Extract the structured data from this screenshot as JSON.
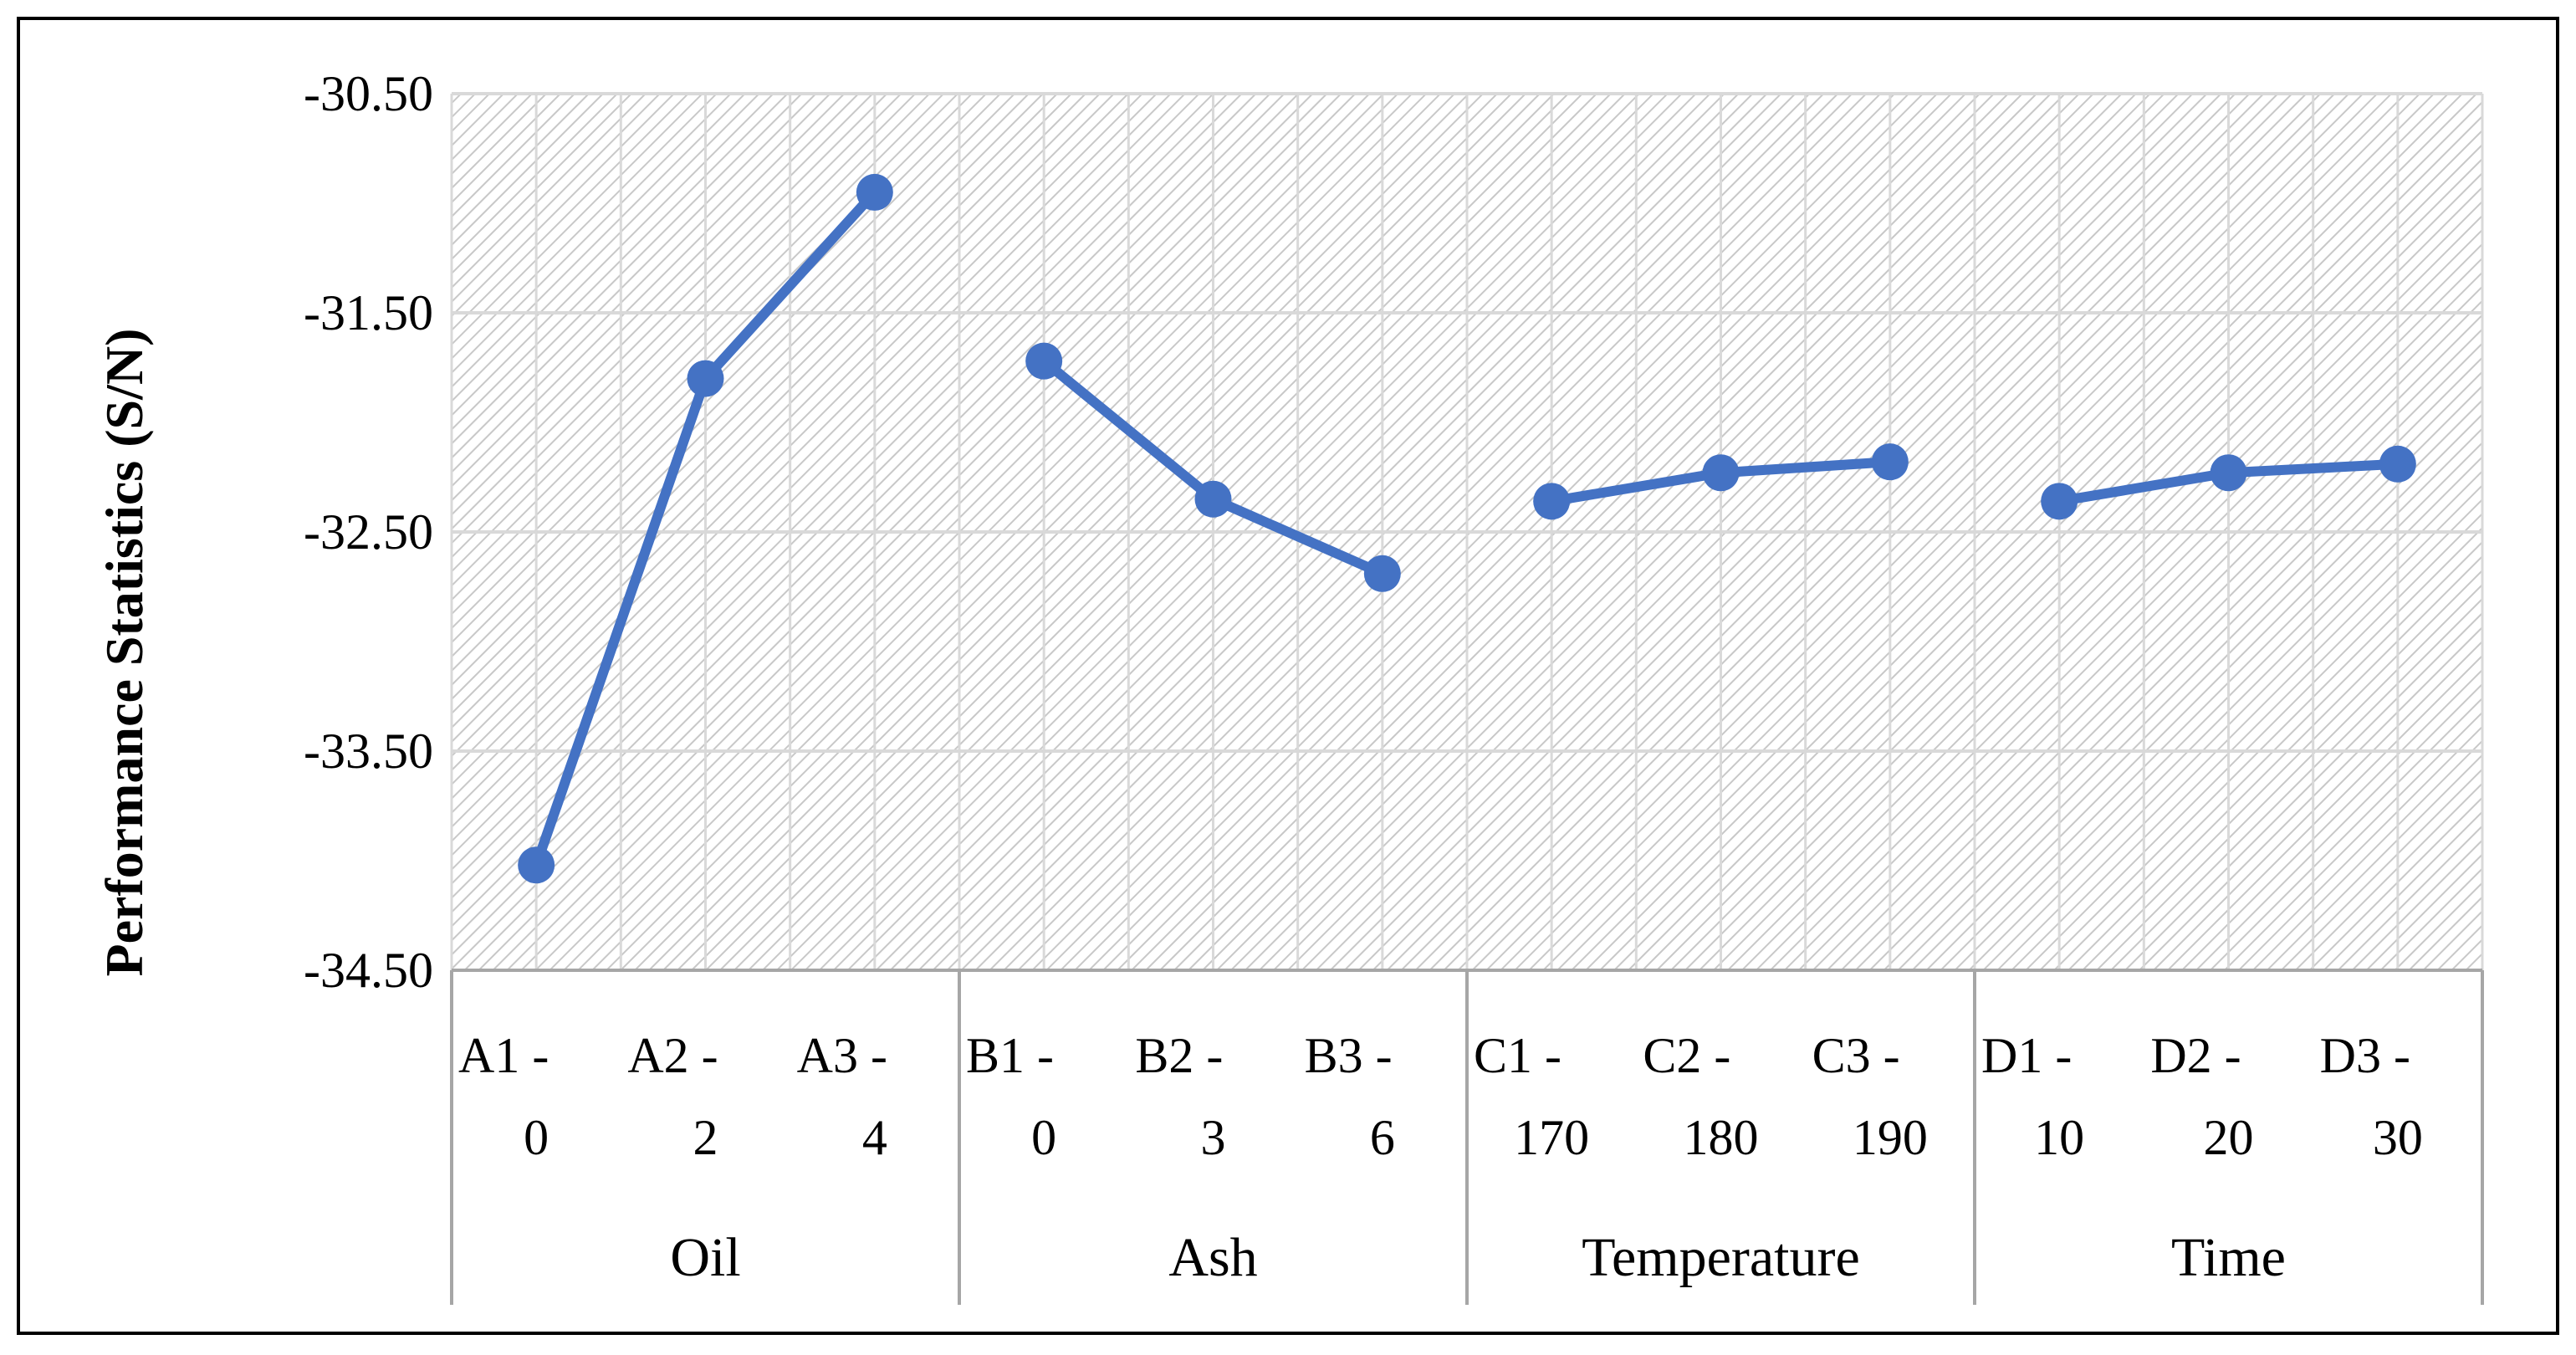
{
  "chart_data": {
    "type": "line",
    "title": "",
    "ylabel": "Performance Statistics (S/N)",
    "xlabel": "",
    "ylim": [
      -34.5,
      -30.5
    ],
    "y_ticks": [
      "-30.50",
      "-31.50",
      "-32.50",
      "-33.50",
      "-34.50"
    ],
    "y_tick_values": [
      -30.5,
      -31.5,
      -32.5,
      -33.5,
      -34.5
    ],
    "grid": true,
    "line_color": "#4472C4",
    "groups": [
      {
        "name": "Oil",
        "categories": [
          {
            "line1": "A1 -",
            "line2": "0"
          },
          {
            "line1": "A2 -",
            "line2": "2"
          },
          {
            "line1": "A3 -",
            "line2": "4"
          }
        ],
        "values": [
          -34.02,
          -31.8,
          -30.95
        ]
      },
      {
        "name": "Ash",
        "categories": [
          {
            "line1": "B1 -",
            "line2": "0"
          },
          {
            "line1": "B2 -",
            "line2": "3"
          },
          {
            "line1": "B3 -",
            "line2": "6"
          }
        ],
        "values": [
          -31.72,
          -32.35,
          -32.69
        ]
      },
      {
        "name": "Temperature",
        "categories": [
          {
            "line1": "C1 -",
            "line2": "170"
          },
          {
            "line1": "C2 -",
            "line2": "180"
          },
          {
            "line1": "C3 -",
            "line2": "190"
          }
        ],
        "values": [
          -32.36,
          -32.23,
          -32.18
        ]
      },
      {
        "name": "Time",
        "categories": [
          {
            "line1": "D1 -",
            "line2": "10"
          },
          {
            "line1": "D2 -",
            "line2": "20"
          },
          {
            "line1": "D3 -",
            "line2": "30"
          }
        ],
        "values": [
          -32.36,
          -32.23,
          -32.19
        ]
      }
    ]
  }
}
